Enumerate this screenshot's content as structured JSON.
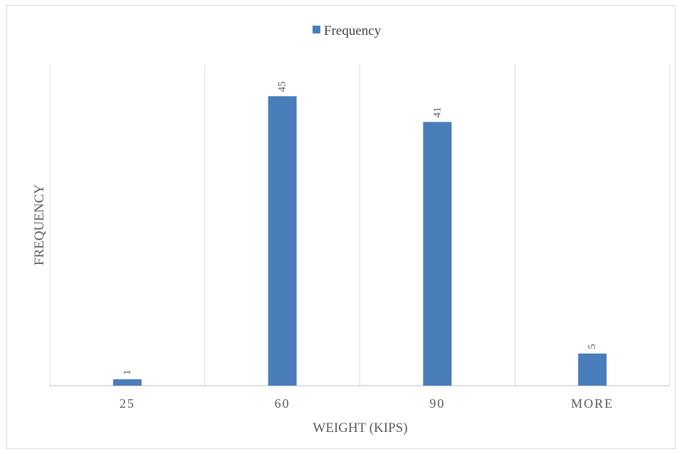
{
  "chart_data": {
    "type": "bar",
    "categories": [
      "25",
      "60",
      "90",
      "MORE"
    ],
    "series": [
      {
        "name": "Frequency",
        "values": [
          1,
          45,
          41,
          5
        ]
      }
    ],
    "xlabel": "WEIGHT (KIPS)",
    "ylabel": "FREQUENCY",
    "ylim": [
      0,
      50
    ],
    "data_labels": true,
    "legend_position": "top-center",
    "grid": "vertical category separators",
    "bar_color": "#4a7ebb"
  }
}
